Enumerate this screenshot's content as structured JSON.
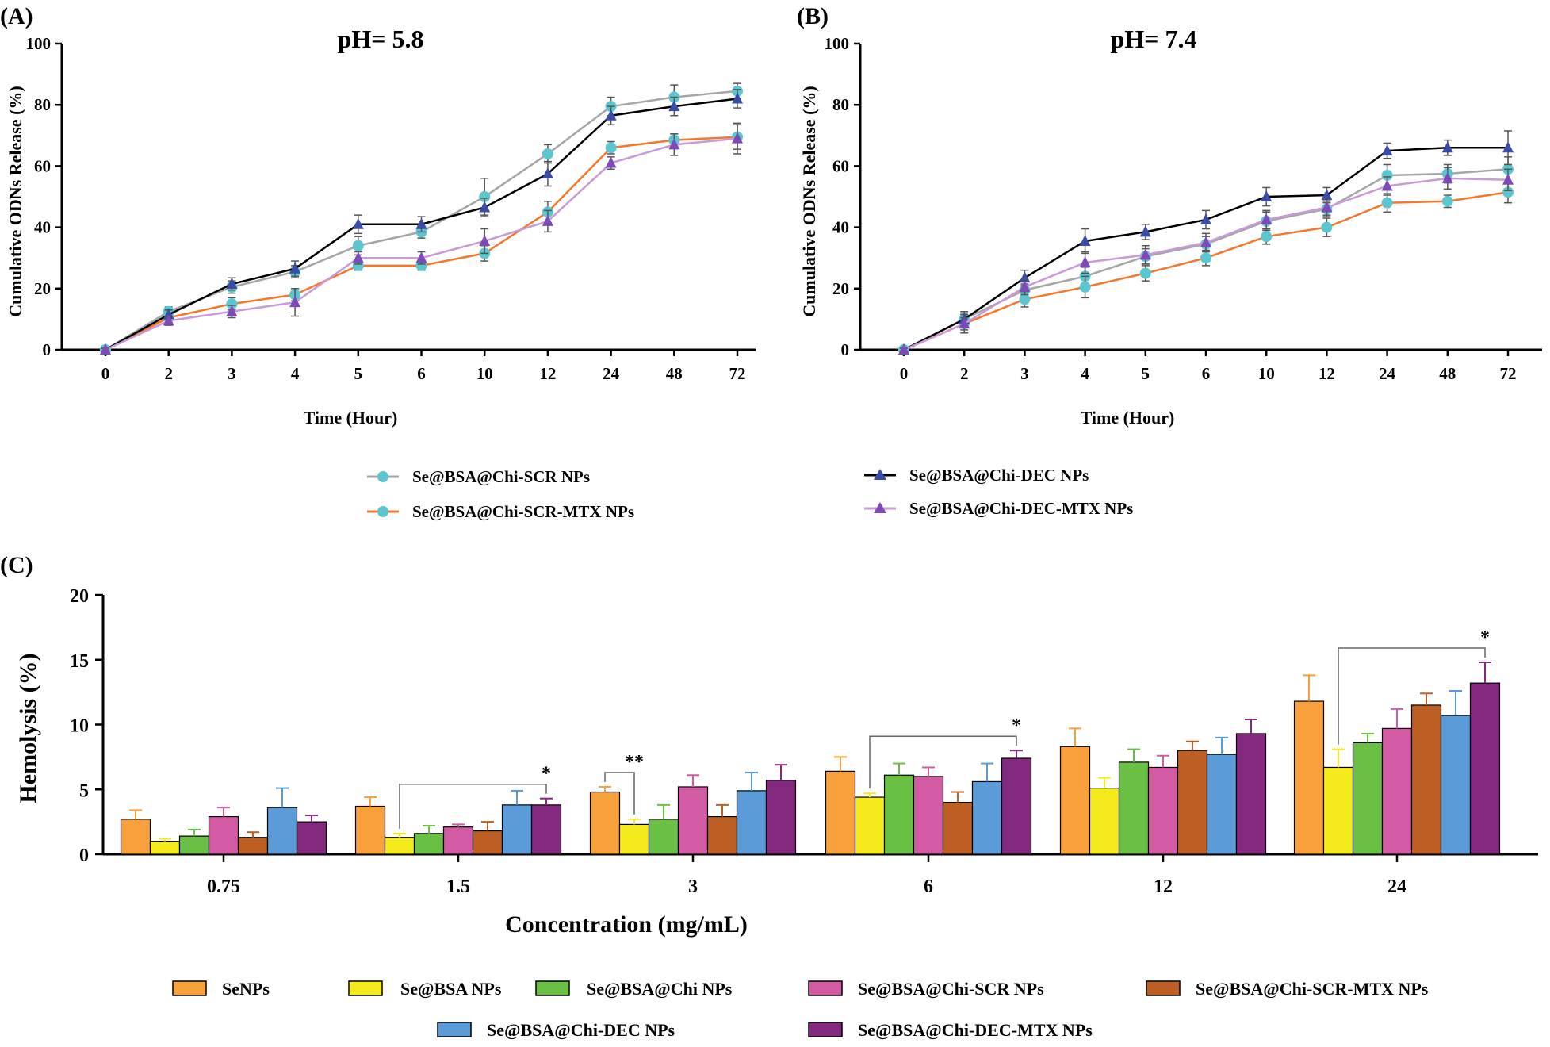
{
  "chart_data": [
    {
      "panel": "(A)",
      "type": "line",
      "title": "pH= 5.8",
      "xlabel": "Time (Hour)",
      "ylabel": "Cumulative ODNs Release (%)",
      "categories": [
        "0",
        "2",
        "3",
        "4",
        "5",
        "6",
        "10",
        "12",
        "24",
        "48",
        "72"
      ],
      "ylim": [
        0,
        100
      ],
      "yticks": [
        "0",
        "20",
        "40",
        "60",
        "80",
        "100"
      ],
      "series": [
        {
          "name": "Se@BSA@Chi-SCR NPs",
          "line_color": "#a6a6a6",
          "marker_color": "#5cc6d0",
          "marker": "circle",
          "values": [
            0,
            12.5,
            20.5,
            25.5,
            34,
            38.5,
            50,
            64,
            79.5,
            82.5,
            84.5
          ],
          "errors": [
            0.5,
            1.5,
            2,
            2,
            3,
            2,
            6,
            3,
            3,
            4,
            2.5
          ]
        },
        {
          "name": "Se@BSA@Chi-SCR-MTX NPs",
          "line_color": "#f4772d",
          "marker_color": "#5cc6d0",
          "marker": "circle",
          "values": [
            0,
            10.5,
            15,
            18,
            27.5,
            27.5,
            31.5,
            45,
            66,
            68.5,
            69.5
          ],
          "errors": [
            0.5,
            1,
            2,
            2,
            1.5,
            1.5,
            2.5,
            3.5,
            2,
            2,
            4
          ]
        },
        {
          "name": "Se@BSA@Chi-DEC NPs",
          "line_color": "#000000",
          "marker_color": "#3a4ca5",
          "marker": "triangle",
          "values": [
            0,
            11.5,
            21.5,
            26.5,
            41,
            41,
            46.5,
            57.5,
            76.5,
            79.5,
            82
          ],
          "errors": [
            0.5,
            1.5,
            2,
            2.5,
            3,
            2.5,
            3,
            4,
            3,
            3,
            3
          ]
        },
        {
          "name": "Se@BSA@Chi-DEC-MTX NPs",
          "line_color": "#c89ad8",
          "marker_color": "#7e49b8",
          "marker": "triangle",
          "values": [
            0,
            9.5,
            12.5,
            15.5,
            30,
            30,
            35.5,
            42,
            61,
            67,
            69
          ],
          "errors": [
            0.5,
            1.5,
            2,
            4.5,
            2,
            2,
            4,
            3.5,
            2,
            3.5,
            5
          ]
        }
      ]
    },
    {
      "panel": "(B)",
      "type": "line",
      "title": "pH= 7.4",
      "xlabel": "Time (Hour)",
      "ylabel": "Cumulative ODNs Release (%)",
      "categories": [
        "0",
        "2",
        "3",
        "4",
        "5",
        "6",
        "10",
        "12",
        "24",
        "48",
        "72"
      ],
      "ylim": [
        0,
        100
      ],
      "yticks": [
        "0",
        "20",
        "40",
        "60",
        "80",
        "100"
      ],
      "series": [
        {
          "name": "Se@BSA@Chi-SCR NPs",
          "line_color": "#a6a6a6",
          "marker_color": "#5cc6d0",
          "marker": "circle",
          "values": [
            0,
            10,
            19.5,
            24,
            30.5,
            34.5,
            42,
            46,
            57,
            57.5,
            59
          ],
          "errors": [
            0.5,
            2,
            2,
            3,
            2.5,
            2.5,
            3,
            2.5,
            3.5,
            3,
            4
          ]
        },
        {
          "name": "Se@BSA@Chi-SCR-MTX NPs",
          "line_color": "#f4772d",
          "marker_color": "#5cc6d0",
          "marker": "circle",
          "values": [
            0,
            8.5,
            16.5,
            20.5,
            25,
            30,
            37,
            40,
            48,
            48.5,
            51.5
          ],
          "errors": [
            0.5,
            3,
            2.5,
            3.5,
            2.5,
            2.5,
            2.5,
            3,
            3,
            2,
            3.5
          ]
        },
        {
          "name": "Se@BSA@Chi-DEC NPs",
          "line_color": "#000000",
          "marker_color": "#3a4ca5",
          "marker": "triangle",
          "values": [
            0,
            10,
            23.5,
            35.5,
            38.5,
            42.5,
            50,
            50.5,
            65,
            66,
            66
          ],
          "errors": [
            0.5,
            2.5,
            2.5,
            4,
            2.5,
            3,
            3,
            2.5,
            2.5,
            2.5,
            5.5
          ]
        },
        {
          "name": "Se@BSA@Chi-DEC-MTX NPs",
          "line_color": "#c89ad8",
          "marker_color": "#7e49b8",
          "marker": "triangle",
          "values": [
            0,
            8.5,
            20.5,
            28.5,
            31,
            35,
            42.5,
            46.5,
            53.5,
            56,
            55.5
          ],
          "errors": [
            0.5,
            2,
            2.5,
            3.5,
            3,
            3,
            3,
            2.5,
            3,
            3.5,
            3.5
          ]
        }
      ]
    },
    {
      "panel": "(C)",
      "type": "bar",
      "xlabel": "Concentration (mg/mL)",
      "ylabel": "Hemolysis (%)",
      "categories": [
        "0.75",
        "1.5",
        "3",
        "6",
        "12",
        "24"
      ],
      "ylim": [
        0,
        20
      ],
      "yticks": [
        "0",
        "5",
        "10",
        "15",
        "20"
      ],
      "series": [
        {
          "name": "SeNPs",
          "color": "#f7a03c",
          "values": [
            2.7,
            3.7,
            4.8,
            6.4,
            8.3,
            11.8
          ],
          "errors": [
            0.7,
            0.7,
            0.4,
            1.1,
            1.4,
            2.0
          ]
        },
        {
          "name": "Se@BSA NPs",
          "color": "#f5ea1c",
          "values": [
            1.0,
            1.3,
            2.3,
            4.4,
            5.1,
            6.7
          ],
          "errors": [
            0.2,
            0.3,
            0.4,
            0.3,
            0.8,
            1.4
          ]
        },
        {
          "name": "Se@BSA@Chi NPs",
          "color": "#6abf45",
          "values": [
            1.4,
            1.6,
            2.7,
            6.1,
            7.1,
            8.6
          ],
          "errors": [
            0.5,
            0.6,
            1.1,
            0.9,
            1.0,
            0.7
          ]
        },
        {
          "name": "Se@BSA@Chi-SCR NPs",
          "color": "#d25ba4",
          "values": [
            2.9,
            2.1,
            5.2,
            6.0,
            6.7,
            9.7
          ],
          "errors": [
            0.7,
            0.2,
            0.9,
            0.7,
            0.9,
            1.5
          ]
        },
        {
          "name": "Se@BSA@Chi-SCR-MTX NPs",
          "color": "#bd5f22",
          "values": [
            1.3,
            1.8,
            2.9,
            4.0,
            8.0,
            11.5
          ],
          "errors": [
            0.4,
            0.7,
            0.9,
            0.8,
            0.7,
            0.9
          ]
        },
        {
          "name": "Se@BSA@Chi-DEC NPs",
          "color": "#5b9bd7",
          "values": [
            3.6,
            3.8,
            4.9,
            5.6,
            7.7,
            10.7
          ],
          "errors": [
            1.5,
            1.1,
            1.4,
            1.4,
            1.3,
            1.9
          ]
        },
        {
          "name": "Se@BSA@Chi-DEC-MTX NPs",
          "color": "#83297e",
          "values": [
            2.5,
            3.8,
            5.7,
            7.4,
            9.3,
            13.2
          ],
          "errors": [
            0.5,
            0.5,
            1.2,
            0.6,
            1.1,
            1.6
          ]
        }
      ],
      "annotations": [
        {
          "category": "1.5",
          "from": "Se@BSA NPs",
          "to": "Se@BSA@Chi-DEC-MTX NPs",
          "label": "*"
        },
        {
          "category": "3",
          "from": "SeNPs",
          "to": "Se@BSA NPs",
          "label": "**"
        },
        {
          "category": "6",
          "from": "Se@BSA NPs",
          "to": "Se@BSA@Chi-DEC-MTX NPs",
          "label": "*"
        },
        {
          "category": "24",
          "from": "Se@BSA NPs",
          "to": "Se@BSA@Chi-DEC-MTX NPs",
          "label": "*"
        }
      ]
    }
  ]
}
